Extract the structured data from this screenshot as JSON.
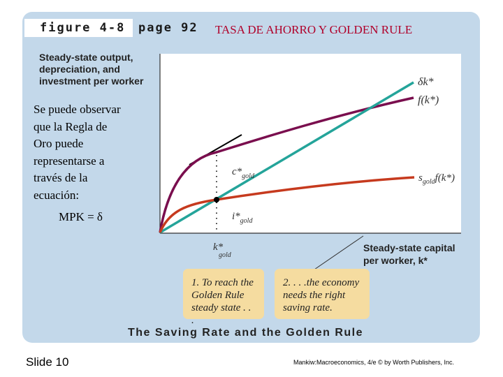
{
  "header": {
    "figure_tag": "figure 4-8",
    "page_tag": "page 92",
    "slide_title": "TASA DE AHORRO Y GOLDEN RULE"
  },
  "axes": {
    "y_label": [
      "Steady-state output,",
      "depreciation, and",
      "investment per worker"
    ],
    "x_label": [
      "Steady-state capital",
      "per worker, k*"
    ],
    "x_marker": {
      "symbol": "k*",
      "subscript": "gold"
    }
  },
  "curves": {
    "depreciation_label": "δk*",
    "production_label": "f(k*)",
    "investment_label_prefix": "s",
    "investment_label_sub": "gold",
    "investment_label_suffix": "f(k*)",
    "consumption_marker": {
      "symbol": "c*",
      "subscript": "gold"
    },
    "investment_marker": {
      "symbol": "i*",
      "subscript": "gold"
    },
    "colors": {
      "production": "#7a0e4e",
      "depreciation": "#24a49a",
      "investment": "#c63a1e",
      "tangent": "#000000"
    }
  },
  "note": {
    "lines": [
      "Se puede observar",
      "que la Regla de",
      "Oro puede",
      "representarse  a",
      "través de la",
      "ecuación:"
    ],
    "equation": "MPK = δ"
  },
  "callouts": [
    {
      "lines": [
        "1. To reach the",
        "Golden Rule",
        "steady state . . ."
      ]
    },
    {
      "lines": [
        "2. . . .the economy",
        "needs the right",
        "saving rate."
      ]
    }
  ],
  "caption": "The Saving Rate and the Golden Rule",
  "footer": {
    "slide_number": "Slide 10",
    "credit": "Mankiw:Macroeconomics, 4/e © by Worth Publishers, Inc."
  }
}
